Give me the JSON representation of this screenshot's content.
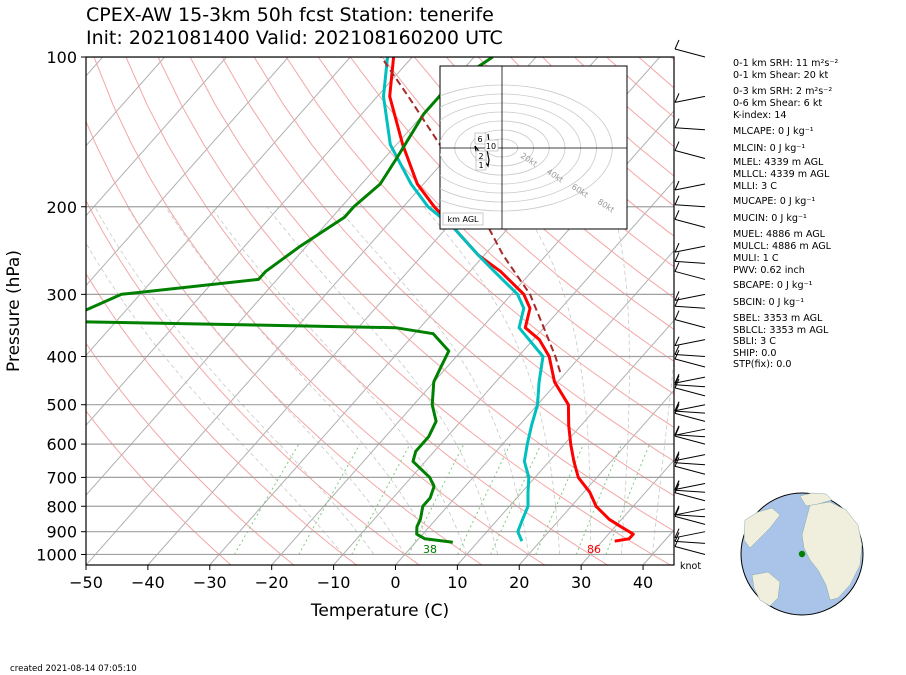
{
  "title_line1": "CPEX-AW 15-3km  50h fcst  Station: tenerife",
  "title_line2": "Init: 2021081400  Valid: 202108160200 UTC",
  "created": "created 2021-08-14 07:05:10",
  "barb_unit": "knot",
  "colors": {
    "temperature": "#ff0000",
    "dewpoint": "#008000",
    "wetbulb": "#00bfbf",
    "parcel": "#a52a2a"
  },
  "indices": [
    "0-1 km SRH: 11 m²s⁻²",
    "0-1 km Shear: 20 kt",
    "0-3 km SRH: 2 m²s⁻²",
    "0-6 km Shear: 6 kt",
    "K-index: 14",
    "MLCAPE: 0 J kg⁻¹",
    "MLCIN: 0 J kg⁻¹",
    "MLEL: 4339 m AGL",
    "MLLCL: 4339 m AGL",
    "MLLI: 3 C",
    "MUCAPE: 0 J kg⁻¹",
    "MUCIN: 0 J kg⁻¹",
    "MUEL: 4886 m AGL",
    "MULCL: 4886 m AGL",
    "MULI: 1 C",
    "PWV: 0.62 inch",
    "SBCAPE: 0 J kg⁻¹",
    "SBCIN: 0 J kg⁻¹",
    "SBEL: 3353 m AGL",
    "SBLCL: 3353 m AGL",
    "SBLI: 3 C",
    "SHIP: 0.0",
    "STP(fix): 0.0"
  ],
  "hodograph": {
    "rings": [
      "20kt",
      "40kt",
      "60kt",
      "80kt"
    ],
    "labels": [
      "6",
      "10",
      "2",
      "1"
    ],
    "legend": "km AGL"
  },
  "chart_data": {
    "type": "line",
    "subtype": "skew-T log-P",
    "xlabel": "Temperature (C)",
    "ylabel": "Pressure (hPa)",
    "xlim": [
      -50,
      45
    ],
    "ylim": [
      1050,
      100
    ],
    "y_scale": "log",
    "xticks": [
      -50,
      -40,
      -30,
      -20,
      -10,
      0,
      10,
      20,
      30,
      40
    ],
    "xtick_labels": [
      "−50",
      "−40",
      "−30",
      "−20",
      "−10",
      "0",
      "10",
      "20",
      "30",
      "40"
    ],
    "yticks": [
      100,
      200,
      300,
      400,
      500,
      600,
      700,
      800,
      900,
      1000
    ],
    "ytick_labels": [
      "100",
      "200",
      "300",
      "400",
      "500",
      "600",
      "700",
      "800",
      "900",
      "1000"
    ],
    "surface_labels": {
      "temperature_f": "86",
      "dewpoint_f": "38"
    },
    "series": [
      {
        "role": "temperature",
        "color": "#ff0000",
        "points": [
          [
            940,
            32
          ],
          [
            930,
            34
          ],
          [
            910,
            34
          ],
          [
            880,
            31
          ],
          [
            850,
            28
          ],
          [
            800,
            24
          ],
          [
            750,
            21
          ],
          [
            700,
            17
          ],
          [
            650,
            14
          ],
          [
            600,
            11
          ],
          [
            550,
            8
          ],
          [
            500,
            5
          ],
          [
            450,
            -0.5
          ],
          [
            400,
            -5
          ],
          [
            370,
            -9
          ],
          [
            350,
            -13
          ],
          [
            320,
            -15
          ],
          [
            300,
            -18
          ],
          [
            270,
            -25
          ],
          [
            250,
            -31
          ],
          [
            220,
            -39
          ],
          [
            200,
            -45
          ],
          [
            180,
            -51
          ],
          [
            150,
            -59
          ],
          [
            120,
            -68
          ],
          [
            100,
            -73
          ]
        ]
      },
      {
        "role": "wetbulb",
        "color": "#00bfbf",
        "points": [
          [
            940,
            17
          ],
          [
            920,
            16
          ],
          [
            900,
            15
          ],
          [
            850,
            14
          ],
          [
            800,
            13
          ],
          [
            750,
            11
          ],
          [
            700,
            9
          ],
          [
            650,
            6
          ],
          [
            600,
            4
          ],
          [
            550,
            2
          ],
          [
            500,
            0
          ],
          [
            450,
            -3
          ],
          [
            400,
            -6
          ],
          [
            350,
            -14
          ],
          [
            320,
            -16
          ],
          [
            300,
            -19
          ],
          [
            270,
            -26
          ],
          [
            250,
            -31
          ],
          [
            220,
            -39
          ],
          [
            200,
            -46
          ],
          [
            180,
            -52
          ],
          [
            150,
            -61
          ],
          [
            120,
            -69
          ],
          [
            100,
            -74
          ]
        ]
      },
      {
        "role": "dewpoint",
        "color": "#008000",
        "points": [
          [
            945,
            6
          ],
          [
            930,
            1
          ],
          [
            910,
            -1
          ],
          [
            880,
            -2
          ],
          [
            850,
            -2.5
          ],
          [
            800,
            -4
          ],
          [
            770,
            -4
          ],
          [
            730,
            -5
          ],
          [
            700,
            -7
          ],
          [
            650,
            -12
          ],
          [
            620,
            -13
          ],
          [
            580,
            -13
          ],
          [
            540,
            -14
          ],
          [
            500,
            -17
          ],
          [
            450,
            -20
          ],
          [
            420,
            -21
          ],
          [
            390,
            -22
          ],
          [
            360,
            -27
          ],
          [
            350,
            -34
          ],
          [
            340,
            -89
          ],
          [
            300,
            -83
          ],
          [
            280,
            -63
          ],
          [
            270,
            -63
          ],
          [
            240,
            -61
          ],
          [
            210,
            -58
          ],
          [
            200,
            -58
          ],
          [
            180,
            -57
          ],
          [
            160,
            -58
          ],
          [
            130,
            -60
          ],
          [
            115,
            -60
          ],
          [
            100,
            -57
          ]
        ]
      },
      {
        "role": "parcel",
        "color": "#a52a2a",
        "style": "dashed",
        "points": [
          [
            430,
            -1
          ],
          [
            400,
            -4
          ],
          [
            350,
            -10
          ],
          [
            300,
            -17
          ],
          [
            250,
            -27
          ],
          [
            200,
            -38
          ],
          [
            150,
            -53
          ],
          [
            120,
            -65
          ],
          [
            100,
            -75
          ]
        ]
      }
    ],
    "wind_levels_hpa": [
      100,
      120,
      140,
      160,
      180,
      200,
      220,
      240,
      260,
      280,
      300,
      320,
      350,
      370,
      400,
      420,
      440,
      460,
      480,
      500,
      520,
      540,
      560,
      580,
      600,
      630,
      660,
      690,
      720,
      750,
      780,
      810,
      840,
      870,
      900,
      950,
      1000
    ]
  }
}
